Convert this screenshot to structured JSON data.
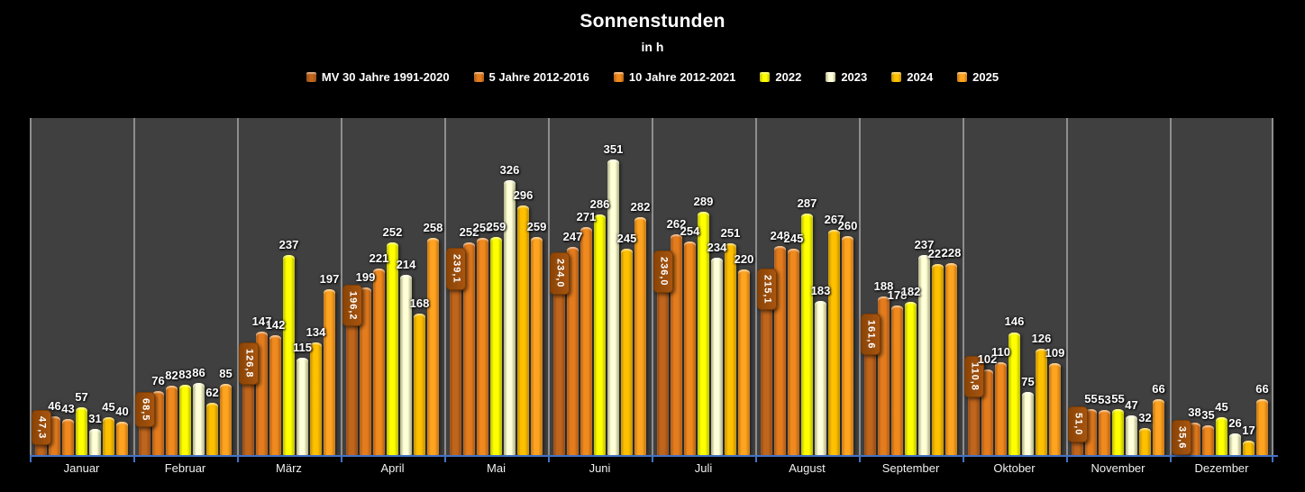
{
  "title": "Sonnenstunden",
  "subtitle": "in h",
  "chart_data": {
    "type": "bar",
    "unit": "h",
    "title": "Sonnenstunden",
    "ylabel": "h",
    "ylim": [
      0,
      400
    ],
    "grid": "vertical-month-separators",
    "legend_position": "top",
    "plot_bg": "#404040",
    "outer_bg": "#000000",
    "separator_color": "#8e8e8e",
    "axis_color": "#4472C4",
    "categories": [
      "Januar",
      "Februar",
      "März",
      "April",
      "Mai",
      "Juni",
      "Juli",
      "August",
      "September",
      "Oktober",
      "November",
      "Dezember"
    ],
    "series": [
      {
        "name": "MV 30 Jahre 1991-2020",
        "color": "#C0651C",
        "edge_color": "#8F4712",
        "label_style": "rotated-box",
        "label_box_color": "#9C4D08",
        "values": [
          47.3,
          68.5,
          126.8,
          196.2,
          239.1,
          234.0,
          236.0,
          215.1,
          161.6,
          110.8,
          51.0,
          35.6
        ],
        "labels": [
          "47,3",
          "68,5",
          "126,8",
          "196,2",
          "239,1",
          "234,0",
          "236,0",
          "215,1",
          "161,6",
          "110,8",
          "51,0",
          "35,6"
        ]
      },
      {
        "name": "5 Jahre 2012-2016",
        "color": "#E47C1E",
        "edge_color": "#A85813",
        "values": [
          46,
          76,
          147,
          199,
          252,
          247,
          262,
          248,
          188,
          102,
          55,
          38
        ]
      },
      {
        "name": "10 Jahre 2012-2021",
        "color": "#F08A1E",
        "edge_color": "#B05E10",
        "values": [
          43,
          82,
          142,
          221,
          258,
          271,
          254,
          245,
          178,
          110,
          53,
          35
        ]
      },
      {
        "name": "2022",
        "color": "#FFFF00",
        "edge_color": "#B8B800",
        "values": [
          57,
          83,
          237,
          252,
          259,
          286,
          289,
          287,
          182,
          146,
          55,
          45
        ]
      },
      {
        "name": "2023",
        "color": "#FFFFD8",
        "edge_color": "#ABAB7E",
        "values": [
          31,
          86,
          115,
          214,
          326,
          351,
          234,
          183,
          237,
          75,
          47,
          26
        ]
      },
      {
        "name": "2024",
        "color": "#FFC000",
        "edge_color": "#BD8E00",
        "values": [
          45,
          62,
          134,
          168,
          296,
          245,
          251,
          267,
          227,
          126,
          32,
          17
        ]
      },
      {
        "name": "2025",
        "color": "#FFA420",
        "edge_color": "#C07310",
        "values": [
          40,
          85,
          197,
          258,
          259,
          282,
          220,
          260,
          228,
          109,
          66,
          66
        ]
      }
    ]
  }
}
